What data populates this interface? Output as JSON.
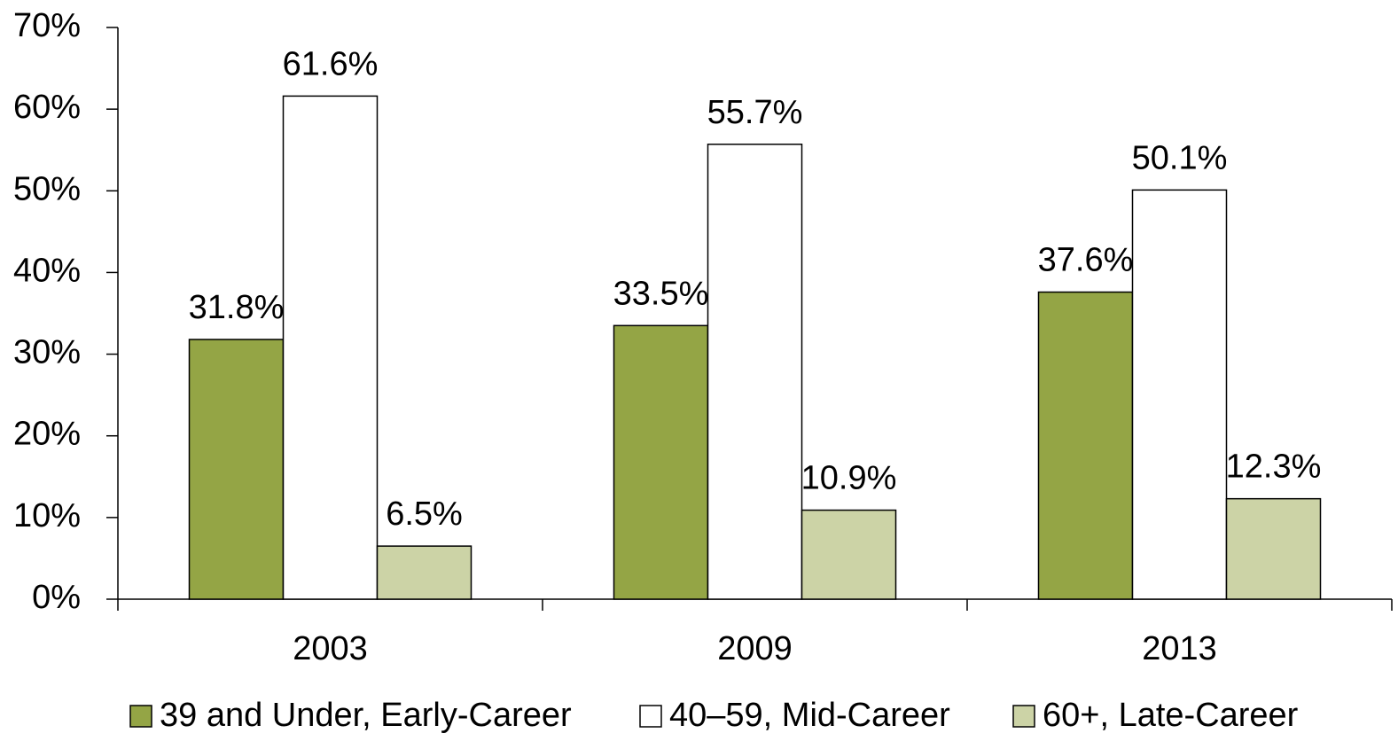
{
  "chart_data": {
    "type": "bar",
    "categories": [
      "2003",
      "2009",
      "2013"
    ],
    "series": [
      {
        "name": "39 and Under, Early-Career",
        "color": "#94a545",
        "values": [
          31.8,
          33.5,
          37.6
        ],
        "value_labels": [
          "31.8%",
          "33.5%",
          "37.6%"
        ]
      },
      {
        "name": "40–59, Mid-Career",
        "color": "#ffffff",
        "values": [
          61.6,
          55.7,
          50.1
        ],
        "value_labels": [
          "61.6%",
          "55.7%",
          "50.1%"
        ]
      },
      {
        "name": "60+, Late-Career",
        "color": "#ccd3a6",
        "values": [
          6.5,
          10.9,
          12.3
        ],
        "value_labels": [
          "6.5%",
          "10.9%",
          "12.3%"
        ]
      }
    ],
    "ylim": [
      0,
      70
    ],
    "yticks": [
      {
        "value": 0,
        "label": "0%"
      },
      {
        "value": 10,
        "label": "10%"
      },
      {
        "value": 20,
        "label": "20%"
      },
      {
        "value": 30,
        "label": "30%"
      },
      {
        "value": 40,
        "label": "40%"
      },
      {
        "value": 50,
        "label": "50%"
      },
      {
        "value": 60,
        "label": "60%"
      },
      {
        "value": 70,
        "label": "70%"
      }
    ],
    "legend": "bottom"
  }
}
